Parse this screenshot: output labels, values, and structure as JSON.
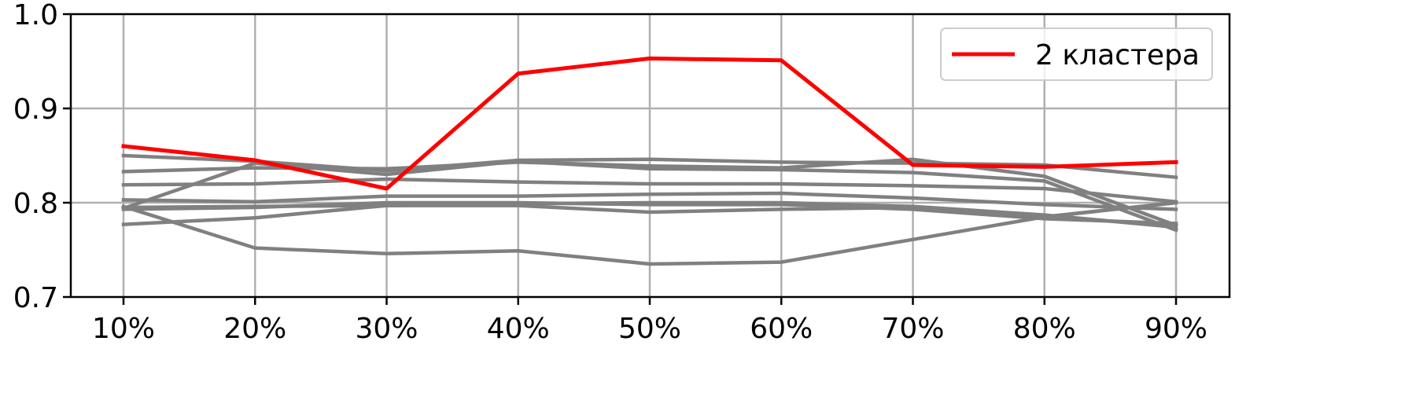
{
  "chart_data": {
    "type": "line",
    "title": "",
    "xlabel": "",
    "ylabel": "",
    "categories": [
      "10%",
      "20%",
      "30%",
      "40%",
      "50%",
      "60%",
      "70%",
      "80%",
      "90%"
    ],
    "ylim": [
      0.7,
      1.0
    ],
    "yticks": [
      "0.7",
      "0.8",
      "0.9",
      "1.0"
    ],
    "grid": true,
    "legend_position": "top-right",
    "legend": [
      {
        "label": "2 кластера",
        "color": "#ff0000"
      }
    ],
    "highlight_series": {
      "name": "2 кластера",
      "color": "#ff0000",
      "values": [
        0.86,
        0.845,
        0.815,
        0.937,
        0.953,
        0.951,
        0.84,
        0.838,
        0.843
      ]
    },
    "other_series_color": "#808080",
    "other_series": [
      {
        "values": [
          0.85,
          0.844,
          0.834,
          0.845,
          0.846,
          0.843,
          0.842,
          0.84,
          0.827
        ]
      },
      {
        "values": [
          0.833,
          0.837,
          0.836,
          0.843,
          0.839,
          0.837,
          0.846,
          0.828,
          0.776
        ]
      },
      {
        "values": [
          0.819,
          0.82,
          0.825,
          0.822,
          0.82,
          0.82,
          0.818,
          0.815,
          0.801
        ]
      },
      {
        "values": [
          0.803,
          0.801,
          0.807,
          0.807,
          0.809,
          0.81,
          0.805,
          0.798,
          0.793
        ]
      },
      {
        "values": [
          0.777,
          0.784,
          0.797,
          0.799,
          0.8,
          0.8,
          0.796,
          0.787,
          0.774
        ]
      },
      {
        "values": [
          0.795,
          0.796,
          0.797,
          0.797,
          0.79,
          0.793,
          0.795,
          0.785,
          0.8
        ]
      },
      {
        "values": [
          0.796,
          0.752,
          0.746,
          0.749,
          0.735,
          0.737,
          0.761,
          0.785,
          0.8
        ]
      },
      {
        "values": [
          0.794,
          0.842,
          0.83,
          0.844,
          0.836,
          0.835,
          0.832,
          0.823,
          0.771
        ]
      },
      {
        "values": [
          0.793,
          0.795,
          0.8,
          0.8,
          0.798,
          0.798,
          0.793,
          0.783,
          0.778
        ]
      }
    ]
  }
}
